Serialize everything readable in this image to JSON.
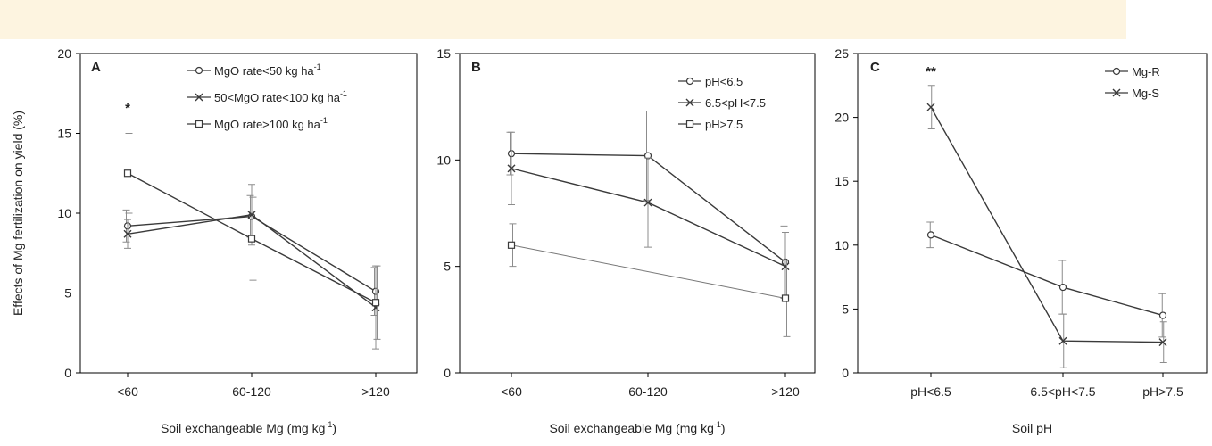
{
  "figure": {
    "top_band_color": "#fdf4e0",
    "line_color": "#3a3a3a",
    "error_color": "#8c8c8c",
    "ylabel": "Effects of Mg fertilization on yield (%)"
  },
  "chart_data": [
    {
      "type": "line",
      "panel": "A",
      "categories": [
        "<60",
        "60-120",
        ">120"
      ],
      "xlabel": "Soil exchangeable Mg (mg kg",
      "xlabel_sup": "-1",
      "xlabel_end": ")",
      "ylabel": "Effects of Mg fertilization on yield (%)",
      "ylim": [
        0,
        20
      ],
      "yticks": [
        0,
        5,
        10,
        15,
        20
      ],
      "legend_position": "top-right",
      "annotations": [
        {
          "text": "*",
          "category": 0,
          "y": 16.6
        }
      ],
      "series": [
        {
          "name": "MgO rate<50 kg ha",
          "name_sup": "-1",
          "marker": "circle",
          "values": [
            9.2,
            9.8,
            5.1
          ],
          "err": [
            1.0,
            1.3,
            1.5
          ]
        },
        {
          "name": "50<MgO rate<100 kg ha",
          "name_sup": "-1",
          "marker": "cross",
          "values": [
            8.7,
            9.9,
            4.1
          ],
          "err": [
            0.9,
            1.9,
            2.6
          ]
        },
        {
          "name": "MgO rate>100 kg ha",
          "name_sup": "-1",
          "marker": "square",
          "values": [
            12.5,
            8.4,
            4.4
          ],
          "err": [
            2.5,
            2.6,
            2.3
          ]
        }
      ]
    },
    {
      "type": "line",
      "panel": "B",
      "categories": [
        "<60",
        "60-120",
        ">120"
      ],
      "xlabel": "Soil exchangeable Mg (mg kg",
      "xlabel_sup": "-1",
      "xlabel_end": ")",
      "ylim": [
        0,
        15
      ],
      "yticks": [
        0,
        5,
        10,
        15
      ],
      "legend_position": "top-right",
      "annotations": [],
      "series": [
        {
          "name": "pH<6.5",
          "marker": "circle",
          "values": [
            10.3,
            10.2,
            5.2
          ],
          "err": [
            1.0,
            2.1,
            1.7
          ]
        },
        {
          "name": "6.5<pH<7.5",
          "marker": "cross",
          "values": [
            9.6,
            8.0,
            5.0
          ],
          "err": [
            1.7,
            2.1,
            1.6
          ]
        },
        {
          "name": "pH>7.5",
          "marker": "square",
          "values": [
            6.0,
            null,
            3.5
          ],
          "err": [
            1.0,
            null,
            1.8
          ]
        }
      ]
    },
    {
      "type": "line",
      "panel": "C",
      "categories": [
        "pH<6.5",
        "6.5<pH<7.5",
        "pH>7.5"
      ],
      "xlabel": "Soil pH",
      "xlabel_sup": "",
      "xlabel_end": "",
      "ylim": [
        0,
        25
      ],
      "yticks": [
        0,
        5,
        10,
        15,
        20,
        25
      ],
      "legend_position": "top-right",
      "annotations": [
        {
          "text": "**",
          "category": 0,
          "y": 23.6
        }
      ],
      "series": [
        {
          "name": "Mg-R",
          "marker": "circle",
          "values": [
            10.8,
            6.7,
            4.5
          ],
          "err": [
            1.0,
            2.1,
            1.7
          ]
        },
        {
          "name": "Mg-S",
          "marker": "cross",
          "values": [
            20.8,
            2.5,
            2.4
          ],
          "err": [
            1.7,
            2.1,
            1.6
          ]
        }
      ]
    }
  ]
}
